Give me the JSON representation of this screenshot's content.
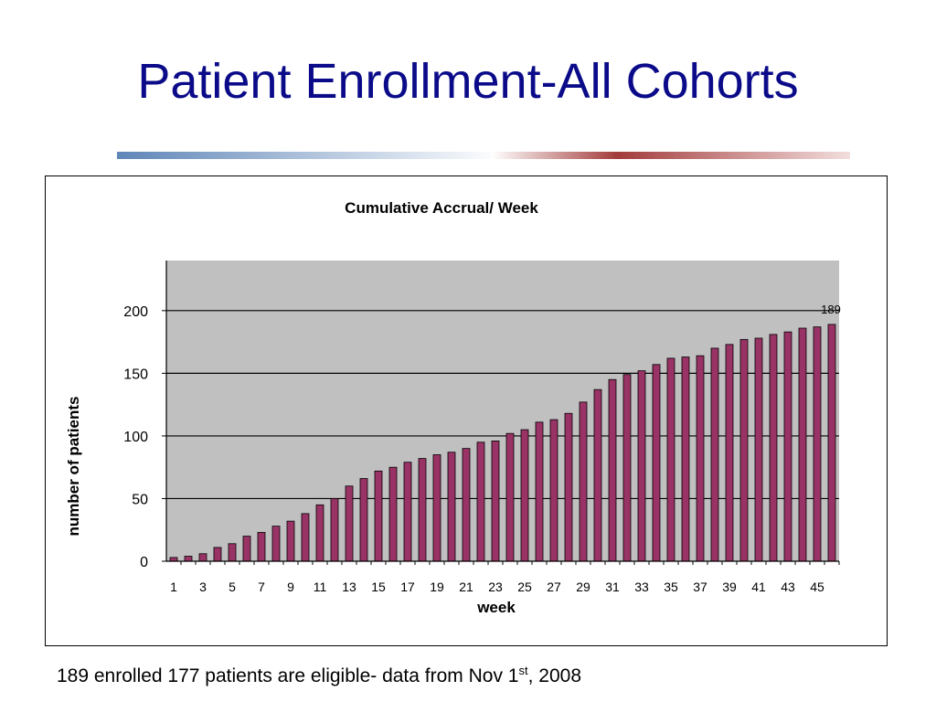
{
  "slide": {
    "title": "Patient Enrollment-All Cohorts",
    "footnote": {
      "prefix": "189 enrolled 177 patients are eligible- data from Nov 1",
      "sup": "st",
      "suffix": ", 2008"
    }
  },
  "colors": {
    "title": "#0b0b8a",
    "bar_fill": "#993366",
    "bar_stroke": "#000000",
    "plot_background": "#c0c0c0"
  },
  "chart_data": {
    "type": "bar",
    "title": "Cumulative Accrual/ Week",
    "xlabel": "week",
    "ylabel": "number of patients",
    "categories": [
      "1",
      "2",
      "3",
      "4",
      "5",
      "6",
      "7",
      "8",
      "9",
      "10",
      "11",
      "12",
      "13",
      "14",
      "15",
      "16",
      "17",
      "18",
      "19",
      "20",
      "21",
      "22",
      "23",
      "24",
      "25",
      "26",
      "27",
      "28",
      "29",
      "30",
      "31",
      "32",
      "33",
      "34",
      "35",
      "36",
      "37",
      "38",
      "39",
      "40",
      "41",
      "42",
      "43",
      "44",
      "45",
      "46"
    ],
    "x_tick_labels": [
      "1",
      "3",
      "5",
      "7",
      "9",
      "11",
      "13",
      "15",
      "17",
      "19",
      "21",
      "23",
      "25",
      "27",
      "29",
      "31",
      "33",
      "35",
      "37",
      "39",
      "41",
      "43",
      "45"
    ],
    "values": [
      3,
      4,
      6,
      11,
      14,
      20,
      23,
      28,
      32,
      38,
      45,
      50,
      60,
      66,
      72,
      75,
      79,
      82,
      85,
      87,
      90,
      95,
      96,
      102,
      105,
      111,
      113,
      118,
      127,
      137,
      145,
      149,
      152,
      157,
      162,
      163,
      164,
      170,
      173,
      177,
      178,
      181,
      183,
      186,
      187,
      189
    ],
    "ylim": [
      0,
      240
    ],
    "yticks": [
      0,
      50,
      100,
      150,
      200
    ],
    "grid": "horizontal",
    "data_labels": [
      {
        "category": "46",
        "text": "189"
      }
    ],
    "legend": "none"
  }
}
